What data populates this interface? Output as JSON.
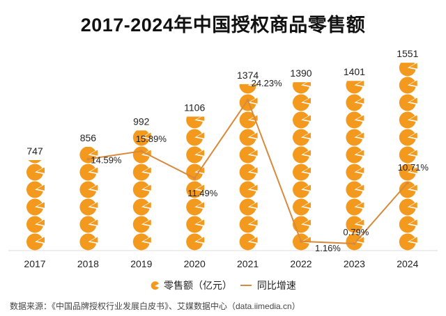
{
  "chart_data": {
    "type": "bar",
    "subtype": "pictograph-bar-with-line",
    "title": "2017-2024年中国授权商品零售额",
    "categories": [
      "2017",
      "2018",
      "2019",
      "2020",
      "2021",
      "2022",
      "2023",
      "2024"
    ],
    "series": [
      {
        "name": "零售额（亿元）",
        "type": "bar",
        "values": [
          747,
          856,
          992,
          1106,
          1374,
          1390,
          1401,
          1551
        ],
        "labels": [
          "747",
          "856",
          "992",
          "1106",
          "1374",
          "1390",
          "1401",
          "1551"
        ],
        "color": "#F39A1E"
      },
      {
        "name": "同比增速",
        "type": "line",
        "values": [
          null,
          14.59,
          15.89,
          11.49,
          24.23,
          1.16,
          0.79,
          10.71
        ],
        "labels": [
          "",
          "14.59%",
          "15.89%",
          "11.49%",
          "24.23%",
          "1.16%",
          "0.79%",
          "10.71%"
        ],
        "color": "#D9893A"
      }
    ],
    "legend": [
      "零售额（亿元）",
      "同比增速"
    ],
    "legend_position": "bottom",
    "grid": false
  },
  "source": "数据来源：《中国品牌授权行业发展白皮书》、艾媒数据中心（data.iimedia.cn）"
}
